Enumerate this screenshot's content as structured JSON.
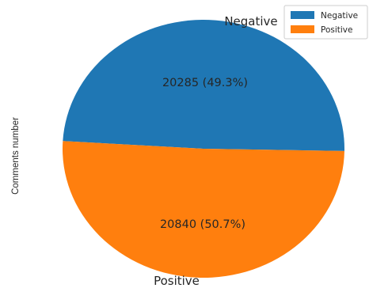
{
  "chart_data": {
    "type": "pie",
    "ylabel": "Comments number",
    "legend_position": "top-right",
    "slices": [
      {
        "label": "Negative",
        "value": 20285,
        "percent_label": "20285 (49.3%)",
        "color": "#1f77b4"
      },
      {
        "label": "Positive",
        "value": 20840,
        "percent_label": "20840 (50.7%)",
        "color": "#ff7f0e"
      }
    ]
  }
}
